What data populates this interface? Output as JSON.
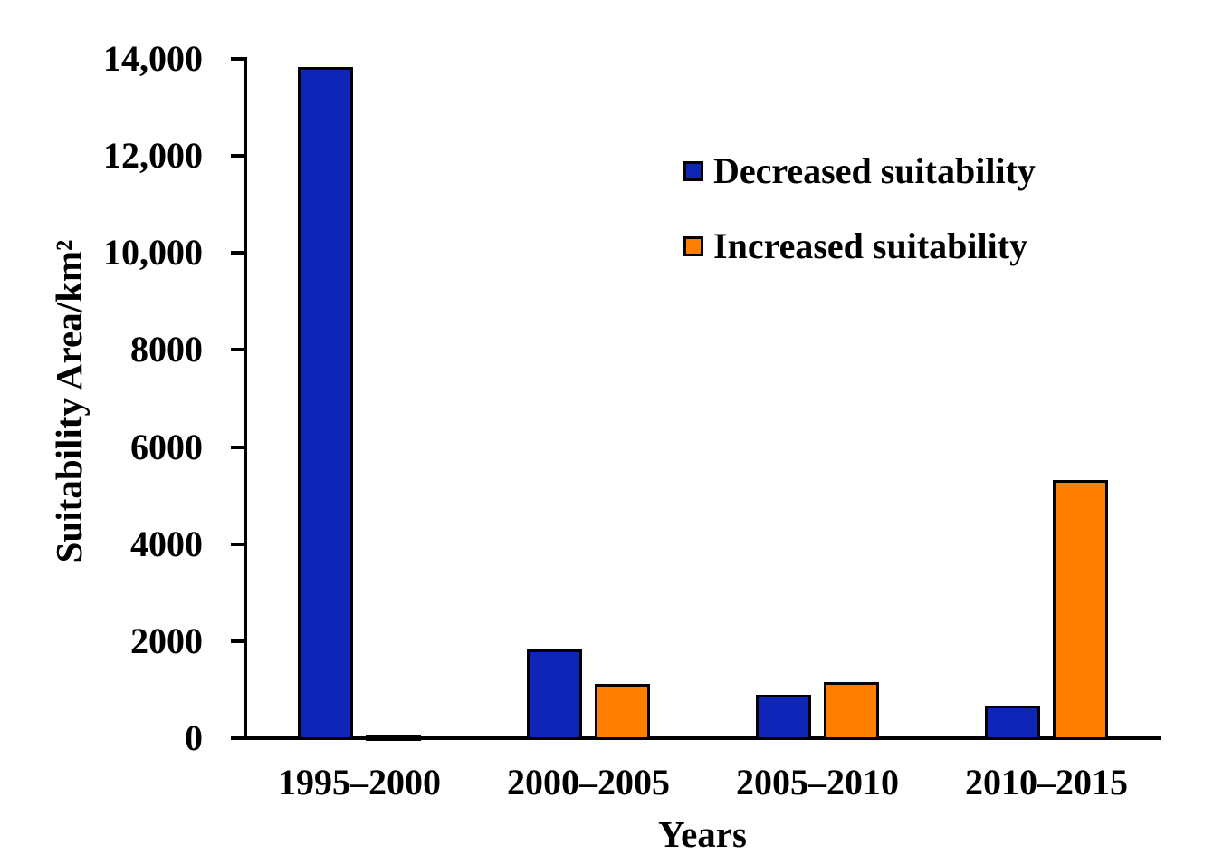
{
  "chart_data": {
    "type": "bar",
    "title": "",
    "xlabel": "Years",
    "ylabel": "Suitability Area/km²",
    "categories": [
      "1995–2000",
      "2000–2005",
      "2005–2010",
      "2010–2015"
    ],
    "series": [
      {
        "name": "Decreased suitability",
        "color": "#0f25b8",
        "values": [
          13870,
          1870,
          930,
          710
        ]
      },
      {
        "name": "Increased suitability",
        "color": "#ff7e00",
        "values": [
          90,
          1160,
          1200,
          5360
        ]
      }
    ],
    "ylim": [
      0,
      14000
    ],
    "ytick_values": [
      0,
      2000,
      4000,
      6000,
      8000,
      10000,
      12000,
      14000
    ],
    "ytick_labels": [
      "0",
      "2000",
      "4000",
      "6000",
      "8000",
      "10,000",
      "12,000",
      "14,000"
    ],
    "grid": false,
    "legend_position": "upper-right-inside",
    "bar_outline_color": "#000000",
    "axis_color": "#000000",
    "background_color": "#ffffff"
  }
}
